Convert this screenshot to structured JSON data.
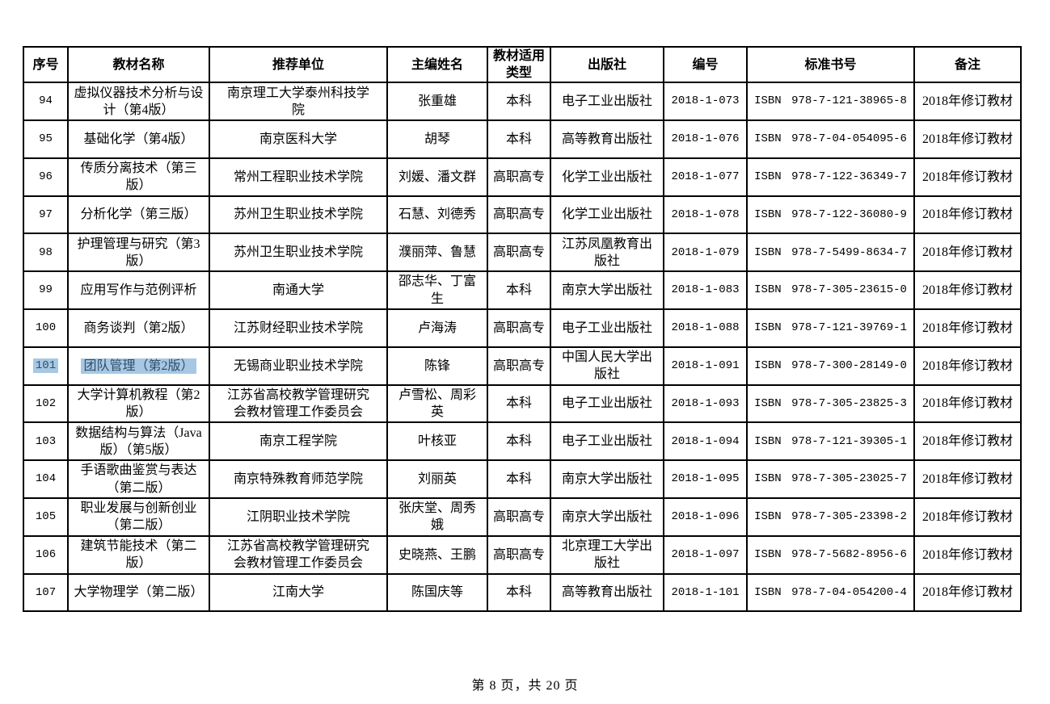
{
  "table": {
    "headers": [
      "序号",
      "教材名称",
      "推荐单位",
      "主编姓名",
      "教材适用类型",
      "出版社",
      "编号",
      "标准书号",
      "备注"
    ],
    "rows": [
      {
        "no": "94",
        "name": "虚拟仪器技术分析与设计（第4版）",
        "unit": "南京理工大学泰州科技学院",
        "editor": "张重雄",
        "type": "本科",
        "publisher": "电子工业出版社",
        "code": "2018-1-073",
        "isbn": "ISBN 978-7-121-38965-8",
        "note": "2018年修订教材",
        "selected": false
      },
      {
        "no": "95",
        "name": "基础化学（第4版）",
        "unit": "南京医科大学",
        "editor": "胡琴",
        "type": "本科",
        "publisher": "高等教育出版社",
        "code": "2018-1-076",
        "isbn": "ISBN 978-7-04-054095-6",
        "note": "2018年修订教材",
        "selected": false
      },
      {
        "no": "96",
        "name": "传质分离技术（第三版）",
        "unit": "常州工程职业技术学院",
        "editor": "刘媛、潘文群",
        "type": "高职高专",
        "publisher": "化学工业出版社",
        "code": "2018-1-077",
        "isbn": "ISBN 978-7-122-36349-7",
        "note": "2018年修订教材",
        "selected": false
      },
      {
        "no": "97",
        "name": "分析化学（第三版）",
        "unit": "苏州卫生职业技术学院",
        "editor": "石慧、刘德秀",
        "type": "高职高专",
        "publisher": "化学工业出版社",
        "code": "2018-1-078",
        "isbn": "ISBN 978-7-122-36080-9",
        "note": "2018年修订教材",
        "selected": false
      },
      {
        "no": "98",
        "name": "护理管理与研究（第3版）",
        "unit": "苏州卫生职业技术学院",
        "editor": "濮丽萍、鲁慧",
        "type": "高职高专",
        "publisher": "江苏凤凰教育出版社",
        "code": "2018-1-079",
        "isbn": "ISBN 978-7-5499-8634-7",
        "note": "2018年修订教材",
        "selected": false
      },
      {
        "no": "99",
        "name": "应用写作与范例评析",
        "unit": "南通大学",
        "editor": "邵志华、丁富生",
        "type": "本科",
        "publisher": "南京大学出版社",
        "code": "2018-1-083",
        "isbn": "ISBN 978-7-305-23615-0",
        "note": "2018年修订教材",
        "selected": false
      },
      {
        "no": "100",
        "name": "商务谈判（第2版）",
        "unit": "江苏财经职业技术学院",
        "editor": "卢海涛",
        "type": "高职高专",
        "publisher": "电子工业出版社",
        "code": "2018-1-088",
        "isbn": "ISBN 978-7-121-39769-1",
        "note": "2018年修订教材",
        "selected": false
      },
      {
        "no": "101",
        "name": "团队管理（第2版）",
        "unit": "无锡商业职业技术学院",
        "editor": "陈锋",
        "type": "高职高专",
        "publisher": "中国人民大学出版社",
        "code": "2018-1-091",
        "isbn": "ISBN 978-7-300-28149-0",
        "note": "2018年修订教材",
        "selected": true
      },
      {
        "no": "102",
        "name": "大学计算机教程（第2版）",
        "unit": "江苏省高校教学管理研究会教材管理工作委员会",
        "editor": "卢雪松、周彩英",
        "type": "本科",
        "publisher": "电子工业出版社",
        "code": "2018-1-093",
        "isbn": "ISBN 978-7-305-23825-3",
        "note": "2018年修订教材",
        "selected": false
      },
      {
        "no": "103",
        "name": "数据结构与算法（Java版）（第5版）",
        "unit": "南京工程学院",
        "editor": "叶核亚",
        "type": "本科",
        "publisher": "电子工业出版社",
        "code": "2018-1-094",
        "isbn": "ISBN 978-7-121-39305-1",
        "note": "2018年修订教材",
        "selected": false
      },
      {
        "no": "104",
        "name": "手语歌曲鉴赏与表达（第二版）",
        "unit": "南京特殊教育师范学院",
        "editor": "刘丽英",
        "type": "本科",
        "publisher": "南京大学出版社",
        "code": "2018-1-095",
        "isbn": "ISBN 978-7-305-23025-7",
        "note": "2018年修订教材",
        "selected": false
      },
      {
        "no": "105",
        "name": "职业发展与创新创业（第二版）",
        "unit": "江阴职业技术学院",
        "editor": "张庆堂、周秀娥",
        "type": "高职高专",
        "publisher": "南京大学出版社",
        "code": "2018-1-096",
        "isbn": "ISBN 978-7-305-23398-2",
        "note": "2018年修订教材",
        "selected": false
      },
      {
        "no": "106",
        "name": "建筑节能技术（第二版）",
        "unit": "江苏省高校教学管理研究会教材管理工作委员会",
        "editor": "史晓燕、王鹏",
        "type": "高职高专",
        "publisher": "北京理工大学出版社",
        "code": "2018-1-097",
        "isbn": "ISBN 978-7-5682-8956-6",
        "note": "2018年修订教材",
        "selected": false
      },
      {
        "no": "107",
        "name": "大学物理学（第二版）",
        "unit": "江南大学",
        "editor": "陈国庆等",
        "type": "本科",
        "publisher": "高等教育出版社",
        "code": "2018-1-101",
        "isbn": "ISBN 978-7-04-054200-4",
        "note": "2018年修订教材",
        "selected": false
      }
    ]
  },
  "footer": {
    "page_text": "第 8 页，共 20 页"
  },
  "colors": {
    "selection_background": "#a6c8e4",
    "selection_text": "#2f4e68",
    "border": "#000000"
  }
}
